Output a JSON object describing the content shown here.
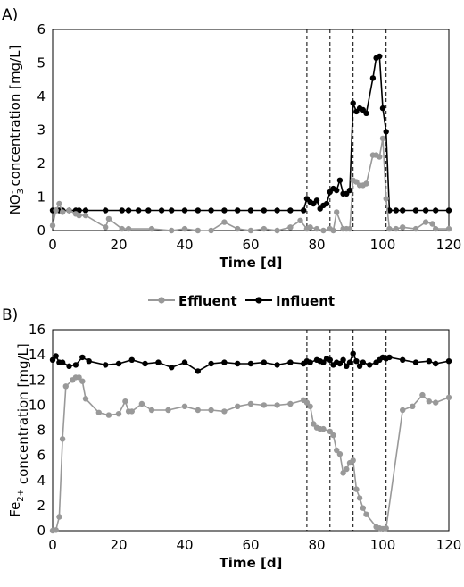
{
  "legend": {
    "items": [
      {
        "label": "Effluent",
        "color": "#999999"
      },
      {
        "label": "Influent",
        "color": "#000000"
      }
    ]
  },
  "chart_data": [
    {
      "panel": "A)",
      "type": "line",
      "xlabel": "Time [d]",
      "ylabel_parts": [
        "NO",
        "3",
        "-",
        " concentration [mg/L]"
      ],
      "xlim": [
        0,
        120
      ],
      "ylim": [
        0,
        6
      ],
      "xticks": [
        0,
        20,
        40,
        60,
        80,
        100,
        120
      ],
      "yticks": [
        0,
        1,
        2,
        3,
        4,
        5,
        6
      ],
      "grid": false,
      "vlines": [
        77,
        84,
        91,
        101
      ],
      "series": [
        {
          "name": "Influent",
          "color": "#000000",
          "points": [
            [
              0,
              0.6
            ],
            [
              1,
              0.6
            ],
            [
              2,
              0.6
            ],
            [
              3,
              0.6
            ],
            [
              5,
              0.6
            ],
            [
              7,
              0.6
            ],
            [
              8,
              0.6
            ],
            [
              10,
              0.6
            ],
            [
              16,
              0.6
            ],
            [
              21,
              0.6
            ],
            [
              23,
              0.6
            ],
            [
              26,
              0.6
            ],
            [
              29,
              0.6
            ],
            [
              33,
              0.6
            ],
            [
              36,
              0.6
            ],
            [
              40,
              0.6
            ],
            [
              44,
              0.6
            ],
            [
              48,
              0.6
            ],
            [
              52,
              0.6
            ],
            [
              56,
              0.6
            ],
            [
              60,
              0.6
            ],
            [
              64,
              0.6
            ],
            [
              68,
              0.6
            ],
            [
              72,
              0.6
            ],
            [
              76,
              0.6
            ],
            [
              77,
              0.95
            ],
            [
              78,
              0.85
            ],
            [
              79,
              0.8
            ],
            [
              80,
              0.9
            ],
            [
              81,
              0.65
            ],
            [
              82,
              0.75
            ],
            [
              83,
              0.8
            ],
            [
              84,
              1.15
            ],
            [
              85,
              1.25
            ],
            [
              86,
              1.2
            ],
            [
              87,
              1.5
            ],
            [
              88,
              1.1
            ],
            [
              89,
              1.1
            ],
            [
              90,
              1.2
            ],
            [
              91,
              3.8
            ],
            [
              92,
              3.55
            ],
            [
              93,
              3.65
            ],
            [
              94,
              3.6
            ],
            [
              95,
              3.5
            ],
            [
              97,
              4.55
            ],
            [
              98,
              5.15
            ],
            [
              99,
              5.2
            ],
            [
              100,
              3.65
            ],
            [
              101,
              2.95
            ],
            [
              102,
              0.6
            ],
            [
              104,
              0.6
            ],
            [
              106,
              0.6
            ],
            [
              110,
              0.6
            ],
            [
              113,
              0.6
            ],
            [
              116,
              0.6
            ],
            [
              120,
              0.6
            ]
          ]
        },
        {
          "name": "Effluent",
          "color": "#999999",
          "points": [
            [
              0,
              0.15
            ],
            [
              1,
              0.6
            ],
            [
              2,
              0.8
            ],
            [
              3,
              0.55
            ],
            [
              5,
              0.6
            ],
            [
              7,
              0.5
            ],
            [
              8,
              0.45
            ],
            [
              10,
              0.45
            ],
            [
              16,
              0.1
            ],
            [
              17,
              0.35
            ],
            [
              21,
              0.05
            ],
            [
              23,
              0.05
            ],
            [
              30,
              0.05
            ],
            [
              36,
              0.0
            ],
            [
              40,
              0.05
            ],
            [
              44,
              0.0
            ],
            [
              48,
              0.0
            ],
            [
              52,
              0.25
            ],
            [
              56,
              0.05
            ],
            [
              60,
              0.0
            ],
            [
              64,
              0.05
            ],
            [
              68,
              0.0
            ],
            [
              72,
              0.1
            ],
            [
              75,
              0.3
            ],
            [
              77,
              0.05
            ],
            [
              78,
              0.1
            ],
            [
              80,
              0.05
            ],
            [
              82,
              0.0
            ],
            [
              84,
              0.05
            ],
            [
              85,
              0.0
            ],
            [
              86,
              0.55
            ],
            [
              88,
              0.05
            ],
            [
              89,
              0.05
            ],
            [
              90,
              0.05
            ],
            [
              91,
              1.5
            ],
            [
              92,
              1.45
            ],
            [
              93,
              1.35
            ],
            [
              94,
              1.35
            ],
            [
              95,
              1.4
            ],
            [
              97,
              2.25
            ],
            [
              98,
              2.25
            ],
            [
              99,
              2.2
            ],
            [
              100,
              2.75
            ],
            [
              101,
              0.95
            ],
            [
              102,
              0.05
            ],
            [
              104,
              0.05
            ],
            [
              106,
              0.1
            ],
            [
              110,
              0.05
            ],
            [
              113,
              0.25
            ],
            [
              115,
              0.2
            ],
            [
              116,
              0.05
            ],
            [
              120,
              0.05
            ]
          ]
        }
      ]
    },
    {
      "panel": "B)",
      "type": "line",
      "xlabel": "Time [d]",
      "ylabel_parts": [
        "Fe",
        "2+",
        "",
        " concentration [mg/L]"
      ],
      "xlim": [
        0,
        120
      ],
      "ylim": [
        0,
        16
      ],
      "xticks": [
        0,
        20,
        40,
        60,
        80,
        100,
        120
      ],
      "yticks": [
        0,
        2,
        4,
        6,
        8,
        10,
        12,
        14,
        16
      ],
      "grid": false,
      "vlines": [
        77,
        84,
        91,
        101
      ],
      "series": [
        {
          "name": "Effluent",
          "color": "#999999",
          "points": [
            [
              0,
              0.0
            ],
            [
              1,
              0.05
            ],
            [
              2,
              1.1
            ],
            [
              3,
              7.3
            ],
            [
              4,
              11.5
            ],
            [
              6,
              12.0
            ],
            [
              7,
              12.2
            ],
            [
              8,
              12.2
            ],
            [
              9,
              11.9
            ],
            [
              10,
              10.5
            ],
            [
              14,
              9.4
            ],
            [
              17,
              9.2
            ],
            [
              20,
              9.3
            ],
            [
              22,
              10.3
            ],
            [
              23,
              9.5
            ],
            [
              24,
              9.5
            ],
            [
              27,
              10.1
            ],
            [
              30,
              9.6
            ],
            [
              35,
              9.6
            ],
            [
              40,
              9.9
            ],
            [
              44,
              9.6
            ],
            [
              48,
              9.6
            ],
            [
              52,
              9.5
            ],
            [
              56,
              9.9
            ],
            [
              60,
              10.1
            ],
            [
              64,
              10.0
            ],
            [
              68,
              10.0
            ],
            [
              72,
              10.1
            ],
            [
              76,
              10.4
            ],
            [
              77,
              10.2
            ],
            [
              78,
              9.9
            ],
            [
              79,
              8.5
            ],
            [
              80,
              8.2
            ],
            [
              81,
              8.1
            ],
            [
              82,
              8.1
            ],
            [
              84,
              7.9
            ],
            [
              85,
              7.6
            ],
            [
              86,
              6.4
            ],
            [
              87,
              6.1
            ],
            [
              88,
              4.6
            ],
            [
              89,
              4.9
            ],
            [
              90,
              5.4
            ],
            [
              91,
              5.6
            ],
            [
              92,
              3.3
            ],
            [
              93,
              2.6
            ],
            [
              94,
              1.8
            ],
            [
              95,
              1.3
            ],
            [
              98,
              0.3
            ],
            [
              99,
              0.2
            ],
            [
              100,
              0.15
            ],
            [
              101,
              0.2
            ],
            [
              106,
              9.6
            ],
            [
              109,
              9.9
            ],
            [
              112,
              10.8
            ],
            [
              114,
              10.3
            ],
            [
              116,
              10.2
            ],
            [
              120,
              10.6
            ]
          ]
        },
        {
          "name": "Influent",
          "color": "#000000",
          "points": [
            [
              0,
              13.6
            ],
            [
              1,
              13.9
            ],
            [
              2,
              13.4
            ],
            [
              3,
              13.4
            ],
            [
              5,
              13.1
            ],
            [
              7,
              13.2
            ],
            [
              9,
              13.8
            ],
            [
              11,
              13.5
            ],
            [
              16,
              13.2
            ],
            [
              20,
              13.3
            ],
            [
              24,
              13.6
            ],
            [
              28,
              13.3
            ],
            [
              32,
              13.4
            ],
            [
              36,
              13.0
            ],
            [
              40,
              13.4
            ],
            [
              44,
              12.7
            ],
            [
              48,
              13.3
            ],
            [
              52,
              13.4
            ],
            [
              56,
              13.3
            ],
            [
              60,
              13.3
            ],
            [
              64,
              13.4
            ],
            [
              68,
              13.2
            ],
            [
              72,
              13.4
            ],
            [
              76,
              13.3
            ],
            [
              77,
              13.5
            ],
            [
              78,
              13.4
            ],
            [
              80,
              13.6
            ],
            [
              81,
              13.5
            ],
            [
              82,
              13.4
            ],
            [
              83,
              13.7
            ],
            [
              84,
              13.6
            ],
            [
              85,
              13.2
            ],
            [
              86,
              13.4
            ],
            [
              87,
              13.3
            ],
            [
              88,
              13.6
            ],
            [
              89,
              13.1
            ],
            [
              90,
              13.4
            ],
            [
              91,
              14.1
            ],
            [
              92,
              13.5
            ],
            [
              93,
              13.1
            ],
            [
              94,
              13.4
            ],
            [
              96,
              13.2
            ],
            [
              98,
              13.4
            ],
            [
              99,
              13.6
            ],
            [
              100,
              13.8
            ],
            [
              101,
              13.7
            ],
            [
              102,
              13.8
            ],
            [
              106,
              13.6
            ],
            [
              110,
              13.4
            ],
            [
              114,
              13.5
            ],
            [
              116,
              13.3
            ],
            [
              120,
              13.5
            ]
          ]
        }
      ]
    }
  ]
}
